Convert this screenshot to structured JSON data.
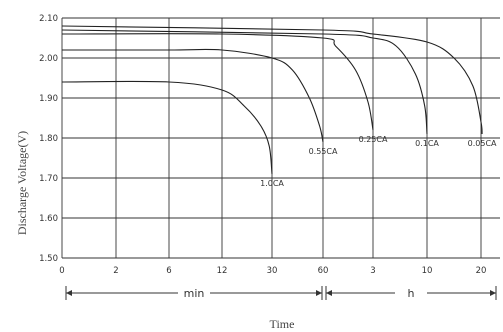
{
  "chart_data": {
    "type": "line",
    "title": "",
    "xlabel": "Time",
    "ylabel": "Discharge Voltage(V)",
    "ylim": [
      1.5,
      2.1
    ],
    "y_ticks": [
      "2.10",
      "2.00",
      "1.90",
      "1.80",
      "1.70",
      "1.60",
      "1.50"
    ],
    "x_ticks": [
      "0",
      "2",
      "6",
      "12",
      "30",
      "60",
      "3",
      "10",
      "20"
    ],
    "x_segments": [
      {
        "label": "min",
        "ticks": [
          "0",
          "2",
          "6",
          "12",
          "30",
          "60"
        ]
      },
      {
        "label": "h",
        "ticks": [
          "60",
          "3",
          "10",
          "20"
        ]
      }
    ],
    "grid": true,
    "series": [
      {
        "name": "1.0CA",
        "points": [
          [
            "0 min",
            1.94
          ],
          [
            "6 min",
            1.94
          ],
          [
            "12 min",
            1.92
          ],
          [
            "20 min",
            1.88
          ],
          [
            "26 min",
            1.83
          ],
          [
            "29 min",
            1.78
          ],
          [
            "30 min",
            1.71
          ]
        ]
      },
      {
        "name": "0.55CA",
        "points": [
          [
            "0 min",
            2.02
          ],
          [
            "6 min",
            2.02
          ],
          [
            "12 min",
            2.02
          ],
          [
            "30 min",
            2.0
          ],
          [
            "42 min",
            1.97
          ],
          [
            "52 min",
            1.9
          ],
          [
            "58 min",
            1.83
          ],
          [
            "60 min",
            1.79
          ]
        ]
      },
      {
        "name": "0.25CA",
        "points": [
          [
            "0 min",
            2.06
          ],
          [
            "12 min",
            2.06
          ],
          [
            "60 min",
            2.05
          ],
          [
            "1.5 h",
            2.03
          ],
          [
            "2.3 h",
            1.97
          ],
          [
            "2.8 h",
            1.89
          ],
          [
            "3 h",
            1.82
          ]
        ]
      },
      {
        "name": "0.1CA",
        "points": [
          [
            "0 min",
            2.07
          ],
          [
            "60 min",
            2.06
          ],
          [
            "3 h",
            2.05
          ],
          [
            "6 h",
            2.03
          ],
          [
            "8.5 h",
            1.96
          ],
          [
            "9.7 h",
            1.88
          ],
          [
            "10 h",
            1.81
          ]
        ]
      },
      {
        "name": "0.05CA",
        "points": [
          [
            "0 min",
            2.08
          ],
          [
            "60 min",
            2.07
          ],
          [
            "3 h",
            2.06
          ],
          [
            "10 h",
            2.04
          ],
          [
            "15 h",
            2.0
          ],
          [
            "18.5 h",
            1.93
          ],
          [
            "20 h",
            1.84
          ],
          [
            "20.2 h",
            1.81
          ]
        ]
      }
    ]
  }
}
